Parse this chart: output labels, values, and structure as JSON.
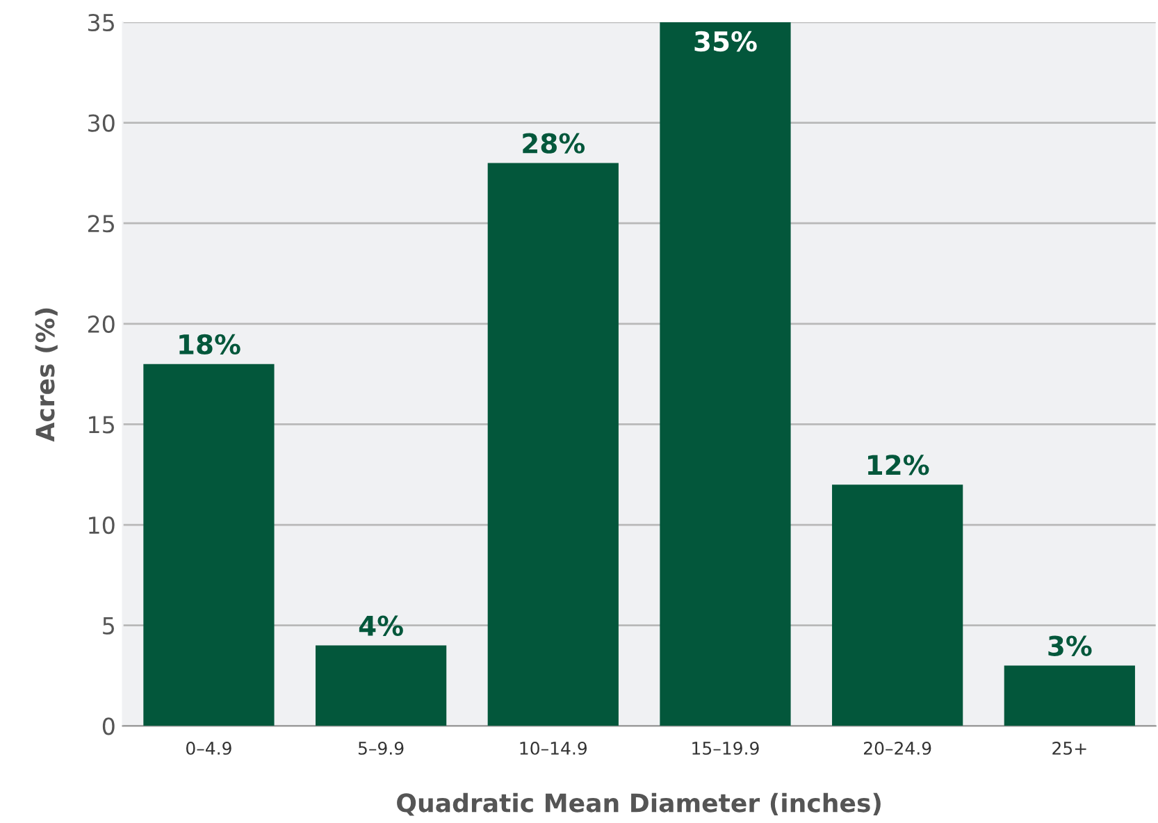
{
  "chart_data": {
    "type": "bar",
    "xlabel": "Quadratic Mean Diameter (inches)",
    "ylabel": "Acres (%)",
    "categories": [
      "0–4.9",
      "5–9.9",
      "10–14.9",
      "15–19.9",
      "20–24.9",
      "25+"
    ],
    "values": [
      18,
      4,
      28,
      35,
      12,
      3
    ],
    "color": "#03573b",
    "value_labels": [
      "18%",
      "4%",
      "28%",
      "35%",
      "12%",
      "3%"
    ],
    "ylim": [
      0,
      35
    ],
    "yticks": [
      0,
      5,
      10,
      15,
      20,
      25,
      30,
      35
    ],
    "grid": "y"
  }
}
